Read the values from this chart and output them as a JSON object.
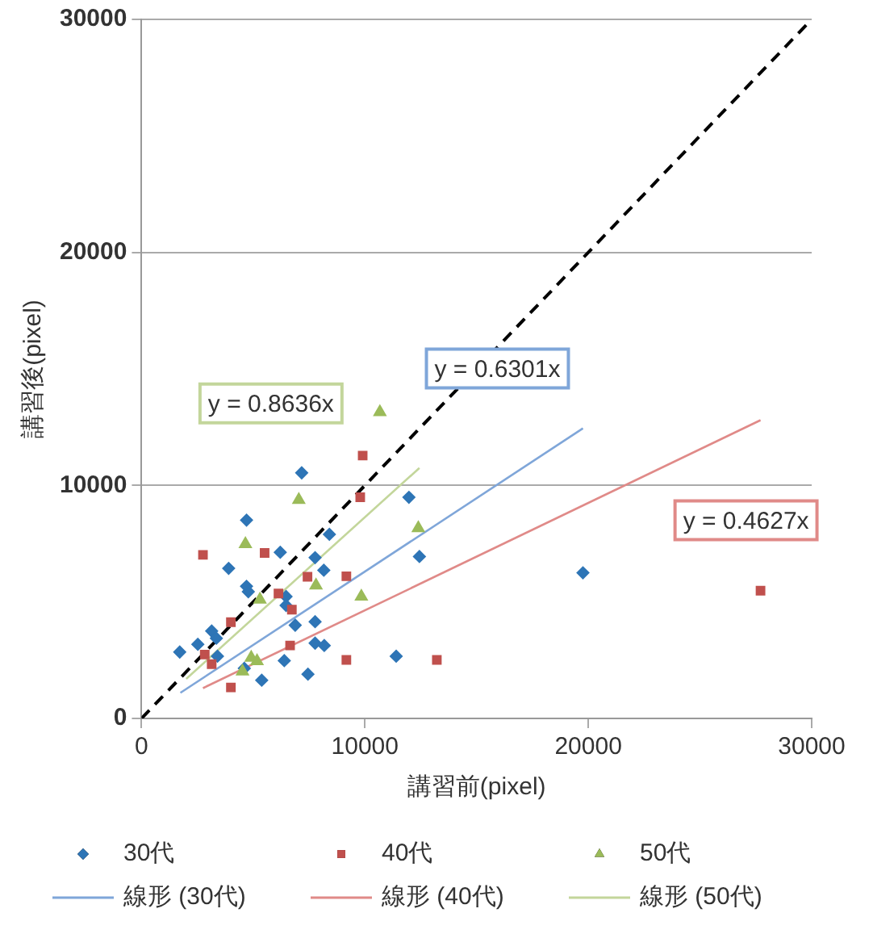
{
  "chart_data": {
    "type": "scatter",
    "xlabel": "講習前(pixel)",
    "ylabel": "講習後(pixel)",
    "xlim": [
      0,
      30000
    ],
    "ylim": [
      0,
      30000
    ],
    "xticks": [
      0,
      10000,
      20000,
      30000
    ],
    "yticks": [
      0,
      10000,
      20000,
      30000
    ],
    "grid": "y",
    "legend": "bottom",
    "series": [
      {
        "name": "30代",
        "color": "#2e75b6",
        "marker": "diamond",
        "x": [
          7170,
          4700,
          11970,
          8410,
          6210,
          3900,
          7770,
          8160,
          12440,
          4700,
          4780,
          6470,
          6470,
          6880,
          7770,
          3140,
          3350,
          1710,
          2520,
          3400,
          7770,
          8180,
          6390,
          11400,
          4600,
          5380,
          7450,
          19760
        ],
        "values": [
          10540,
          8510,
          9490,
          7900,
          7130,
          6440,
          6900,
          6360,
          6950,
          5670,
          5440,
          5230,
          4850,
          4000,
          4150,
          3750,
          3440,
          2850,
          3180,
          2670,
          3230,
          3130,
          2480,
          2670,
          2150,
          1640,
          1900,
          6250
        ]
      },
      {
        "name": "40代",
        "color": "#c0504d",
        "marker": "square",
        "x": [
          9900,
          9790,
          2750,
          5510,
          7430,
          9170,
          6130,
          6730,
          4000,
          6650,
          2830,
          3140,
          4000,
          9170,
          13220,
          27710
        ],
        "values": [
          11280,
          9490,
          7020,
          7100,
          6080,
          6100,
          5360,
          4670,
          4130,
          3130,
          2740,
          2330,
          1330,
          2510,
          2510,
          5480
        ]
      },
      {
        "name": "50代",
        "color": "#9bbb59",
        "marker": "triangle",
        "x": [
          7040,
          4650,
          12390,
          7810,
          9840,
          5300,
          4910,
          5170,
          4520,
          10670
        ],
        "values": [
          9380,
          7480,
          8170,
          5710,
          5230,
          5100,
          2610,
          2460,
          2020,
          13150
        ]
      },
      {
        "name": "線形 (30代)",
        "type": "line",
        "color": "#7fa6d9",
        "marker": "none",
        "x": [
          1740,
          19760
        ],
        "values": [
          1100,
          12450
        ]
      },
      {
        "name": "線形 (40代)",
        "type": "line",
        "color": "#e08a88",
        "marker": "none",
        "x": [
          2750,
          27710
        ],
        "values": [
          1300,
          12800
        ]
      },
      {
        "name": "線形 (50代)",
        "type": "line",
        "color": "#c3d69b",
        "marker": "none",
        "x": [
          2000,
          12440
        ],
        "values": [
          1700,
          10750
        ]
      },
      {
        "type": "line",
        "color": "#000000",
        "marker": "none",
        "line_style": "dashed",
        "x": [
          0,
          30000
        ],
        "values": [
          0,
          30000
        ]
      }
    ],
    "annotations": [
      "y = 0.6301x",
      "y = 0.4627x",
      "y = 0.8636x"
    ]
  }
}
